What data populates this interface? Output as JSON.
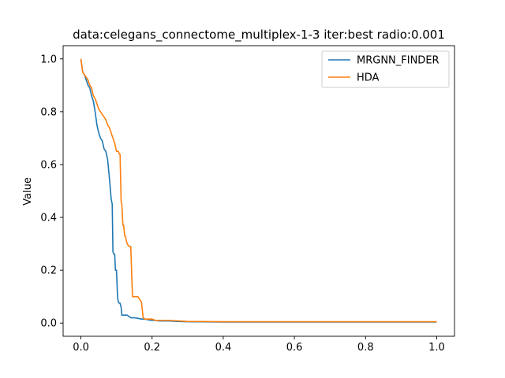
{
  "chart_data": {
    "type": "line",
    "title": "data:celegans_connectome_multiplex-1-3 iter:best radio:0.001",
    "xlabel": "",
    "ylabel": "Value",
    "xlim": [
      -0.05,
      1.05
    ],
    "ylim": [
      -0.05,
      1.05
    ],
    "xticks": [
      0.0,
      0.2,
      0.4,
      0.6,
      0.8,
      1.0
    ],
    "xtick_labels": [
      "0.0",
      "0.2",
      "0.4",
      "0.6",
      "0.8",
      "1.0"
    ],
    "yticks": [
      0.0,
      0.2,
      0.4,
      0.6,
      0.8,
      1.0
    ],
    "ytick_labels": [
      "0.0",
      "0.2",
      "0.4",
      "0.6",
      "0.8",
      "1.0"
    ],
    "grid": false,
    "legend_position": "upper-right",
    "series": [
      {
        "name": "MRGNN_FINDER",
        "color": "#1f77b4",
        "x": [
          0.0,
          0.005,
          0.01,
          0.015,
          0.02,
          0.025,
          0.03,
          0.035,
          0.04,
          0.045,
          0.05,
          0.055,
          0.06,
          0.065,
          0.07,
          0.075,
          0.08,
          0.085,
          0.088,
          0.09,
          0.093,
          0.095,
          0.097,
          0.1,
          0.103,
          0.105,
          0.108,
          0.11,
          0.113,
          0.115,
          0.12,
          0.125,
          0.13,
          0.14,
          0.15,
          0.16,
          0.17,
          0.18,
          0.19,
          0.2,
          0.21,
          0.22,
          0.25,
          0.27,
          0.3,
          0.4,
          0.5,
          0.6,
          0.7,
          0.8,
          0.9,
          1.0
        ],
        "values": [
          1.0,
          0.95,
          0.94,
          0.92,
          0.9,
          0.89,
          0.86,
          0.84,
          0.8,
          0.75,
          0.72,
          0.7,
          0.69,
          0.66,
          0.65,
          0.62,
          0.55,
          0.47,
          0.45,
          0.27,
          0.26,
          0.26,
          0.2,
          0.2,
          0.1,
          0.08,
          0.075,
          0.075,
          0.06,
          0.03,
          0.03,
          0.03,
          0.03,
          0.02,
          0.02,
          0.018,
          0.015,
          0.015,
          0.012,
          0.01,
          0.01,
          0.008,
          0.008,
          0.006,
          0.005,
          0.004,
          0.004,
          0.004,
          0.004,
          0.004,
          0.004,
          0.004
        ]
      },
      {
        "name": "HDA",
        "color": "#ff7f0e",
        "x": [
          0.0,
          0.005,
          0.01,
          0.015,
          0.02,
          0.025,
          0.03,
          0.035,
          0.04,
          0.045,
          0.05,
          0.055,
          0.06,
          0.065,
          0.07,
          0.075,
          0.08,
          0.085,
          0.09,
          0.095,
          0.1,
          0.105,
          0.108,
          0.11,
          0.113,
          0.115,
          0.118,
          0.12,
          0.123,
          0.125,
          0.128,
          0.13,
          0.135,
          0.14,
          0.145,
          0.15,
          0.155,
          0.16,
          0.165,
          0.17,
          0.175,
          0.18,
          0.185,
          0.19,
          0.2,
          0.21,
          0.22,
          0.25,
          0.3,
          0.4,
          0.5,
          0.6,
          0.7,
          0.8,
          0.9,
          1.0
        ],
        "values": [
          1.0,
          0.95,
          0.94,
          0.93,
          0.92,
          0.9,
          0.89,
          0.86,
          0.85,
          0.83,
          0.81,
          0.8,
          0.79,
          0.78,
          0.77,
          0.75,
          0.74,
          0.72,
          0.7,
          0.68,
          0.65,
          0.65,
          0.64,
          0.64,
          0.46,
          0.45,
          0.37,
          0.37,
          0.33,
          0.33,
          0.31,
          0.3,
          0.29,
          0.29,
          0.1,
          0.1,
          0.1,
          0.1,
          0.09,
          0.08,
          0.02,
          0.015,
          0.015,
          0.015,
          0.015,
          0.01,
          0.01,
          0.01,
          0.006,
          0.005,
          0.005,
          0.005,
          0.005,
          0.005,
          0.005,
          0.005
        ]
      }
    ]
  }
}
